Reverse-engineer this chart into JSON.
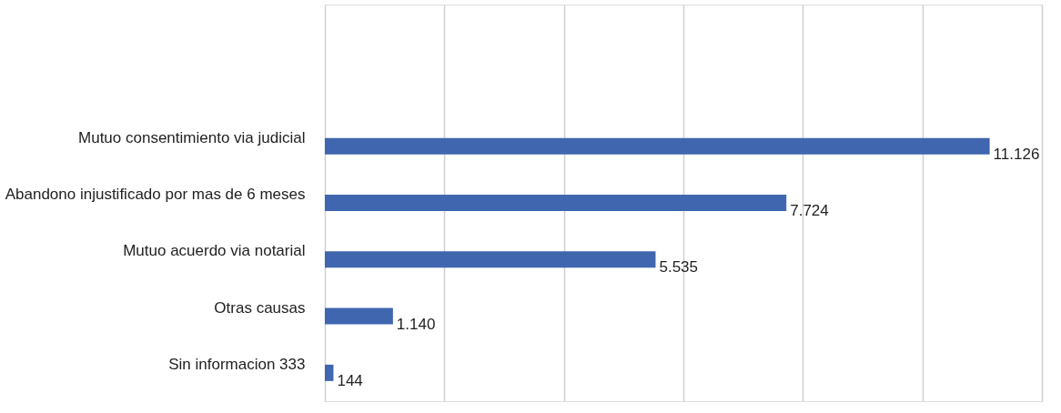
{
  "chart_data": {
    "type": "bar",
    "orientation": "horizontal",
    "categories": [
      null,
      null,
      "Mutuo consentimiento via judicial",
      "Abandono injustificado por mas de 6 meses",
      "Mutuo acuerdo via notarial",
      "Otras causas",
      "Sin informacion 333"
    ],
    "values": [
      null,
      null,
      11126,
      7724,
      5535,
      1140,
      144
    ],
    "value_labels": [
      null,
      null,
      "11.126",
      "7.724",
      "5.535",
      "1.140",
      "144"
    ],
    "color": "#4066b0",
    "xlim": [
      0,
      12000
    ],
    "xticks": [
      0,
      2000,
      4000,
      6000,
      8000,
      10000,
      12000
    ],
    "grid": "x",
    "tick_labels": "y"
  }
}
